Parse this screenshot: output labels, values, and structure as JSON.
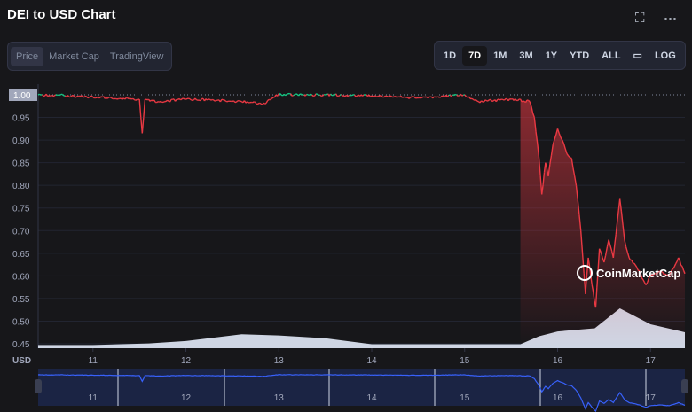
{
  "title": "DEI to USD Chart",
  "tabs": [
    {
      "label": "Price",
      "active": true
    },
    {
      "label": "Market Cap"
    },
    {
      "label": "TradingView"
    }
  ],
  "ranges": [
    {
      "label": "1D"
    },
    {
      "label": "7D",
      "active": true
    },
    {
      "label": "1M"
    },
    {
      "label": "3M"
    },
    {
      "label": "1Y"
    },
    {
      "label": "YTD"
    },
    {
      "label": "ALL"
    },
    {
      "label": "LOG"
    }
  ],
  "watermark": "CoinMarketCap",
  "colors": {
    "up": "#16c784",
    "down": "#ea3943",
    "navigator": "#3861fb",
    "volume": "#cfd6e4"
  },
  "chart_data": {
    "type": "line",
    "title": "DEI to USD Chart",
    "ylabel": "USD",
    "ylim": [
      0.45,
      1.0
    ],
    "xlim": [
      10.41,
      17.37
    ],
    "yticks": [
      "1.00",
      "0.95",
      "0.90",
      "0.85",
      "0.80",
      "0.75",
      "0.70",
      "0.65",
      "0.60",
      "0.55",
      "0.50",
      "0.45"
    ],
    "xticks": [
      "11",
      "12",
      "13",
      "14",
      "15",
      "16",
      "17"
    ],
    "current_price_label": "1.00",
    "price": [
      [
        10.41,
        1.0
      ],
      [
        10.7,
        0.998
      ],
      [
        11.0,
        0.995
      ],
      [
        11.3,
        0.992
      ],
      [
        11.5,
        0.99
      ],
      [
        11.53,
        0.915
      ],
      [
        11.56,
        0.99
      ],
      [
        11.7,
        0.985
      ],
      [
        12.0,
        0.99
      ],
      [
        12.3,
        0.988
      ],
      [
        12.6,
        0.985
      ],
      [
        12.85,
        0.98
      ],
      [
        12.97,
        1.0
      ],
      [
        13.5,
        1.0
      ],
      [
        14.0,
        0.998
      ],
      [
        14.5,
        0.993
      ],
      [
        15.0,
        1.0
      ],
      [
        15.15,
        0.985
      ],
      [
        15.5,
        0.99
      ],
      [
        15.7,
        0.985
      ],
      [
        15.75,
        0.95
      ],
      [
        15.8,
        0.86
      ],
      [
        15.83,
        0.78
      ],
      [
        15.87,
        0.85
      ],
      [
        15.9,
        0.82
      ],
      [
        15.95,
        0.89
      ],
      [
        16.0,
        0.925
      ],
      [
        16.05,
        0.9
      ],
      [
        16.1,
        0.87
      ],
      [
        16.15,
        0.86
      ],
      [
        16.2,
        0.8
      ],
      [
        16.25,
        0.7
      ],
      [
        16.3,
        0.56
      ],
      [
        16.33,
        0.64
      ],
      [
        16.37,
        0.58
      ],
      [
        16.41,
        0.53
      ],
      [
        16.45,
        0.66
      ],
      [
        16.5,
        0.63
      ],
      [
        16.55,
        0.68
      ],
      [
        16.6,
        0.64
      ],
      [
        16.67,
        0.77
      ],
      [
        16.72,
        0.68
      ],
      [
        16.77,
        0.64
      ],
      [
        16.85,
        0.62
      ],
      [
        16.95,
        0.58
      ],
      [
        17.0,
        0.6
      ],
      [
        17.1,
        0.61
      ],
      [
        17.2,
        0.6
      ],
      [
        17.3,
        0.64
      ],
      [
        17.37,
        0.605
      ]
    ],
    "volume_relative": [
      [
        10.41,
        0.08
      ],
      [
        11.0,
        0.08
      ],
      [
        11.6,
        0.12
      ],
      [
        12.0,
        0.18
      ],
      [
        12.6,
        0.35
      ],
      [
        13.0,
        0.32
      ],
      [
        13.5,
        0.25
      ],
      [
        14.0,
        0.1
      ],
      [
        14.8,
        0.1
      ],
      [
        15.6,
        0.1
      ],
      [
        15.8,
        0.3
      ],
      [
        16.0,
        0.42
      ],
      [
        16.4,
        0.5
      ],
      [
        16.67,
        1.0
      ],
      [
        17.0,
        0.6
      ],
      [
        17.37,
        0.4
      ]
    ]
  }
}
